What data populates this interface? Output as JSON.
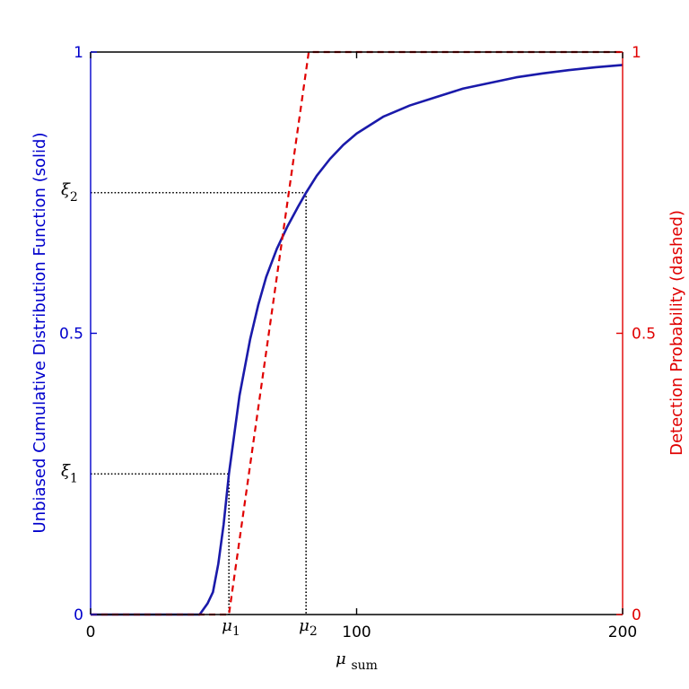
{
  "chart_data": {
    "type": "line",
    "x": [
      0,
      40,
      50,
      55,
      60,
      62,
      64,
      66,
      68,
      70,
      72,
      74,
      76,
      78,
      80,
      82,
      84,
      86,
      88,
      90,
      92,
      94,
      96,
      100,
      110,
      120,
      130,
      140,
      150,
      160,
      170,
      180,
      190,
      200
    ],
    "xlim": [
      0,
      200
    ],
    "xlabel": {
      "main": "μ",
      "sub": "sum"
    },
    "xticks": [
      "0",
      "100",
      "200"
    ],
    "xtick_values": [
      0,
      100,
      200
    ],
    "special_xticks": [
      {
        "main": "μ",
        "sub": "1",
        "value": 52
      },
      {
        "main": "μ",
        "sub": "2",
        "value": 81
      }
    ],
    "left_axis": {
      "ylabel": "Unbiased Cumulative Distribution Function (solid)",
      "ylim": [
        0,
        1
      ],
      "yticks": [
        "0",
        "0.5",
        "1"
      ],
      "ytick_values": [
        0,
        0.5,
        1
      ],
      "color": "#0000cc",
      "special_yticks": [
        {
          "main": "ξ",
          "sub": "1",
          "value": 0.25
        },
        {
          "main": "ξ",
          "sub": "2",
          "value": 0.75
        }
      ]
    },
    "right_axis": {
      "ylabel": "Detection Probability (dashed)",
      "ylim": [
        0,
        1
      ],
      "yticks": [
        "0",
        "0.5",
        "1"
      ],
      "ytick_values": [
        0,
        0.5,
        1
      ],
      "color": "#e00000"
    },
    "series": [
      {
        "style": "solid",
        "axis": "left",
        "color": "#1a1aaa",
        "x": [
          0,
          41,
          44,
          46,
          48,
          50,
          52,
          54,
          56,
          58,
          60,
          63,
          66,
          70,
          74,
          78,
          81,
          85,
          90,
          95,
          100,
          110,
          120,
          130,
          140,
          150,
          160,
          170,
          180,
          190,
          200
        ],
        "y": [
          0,
          0,
          0.02,
          0.04,
          0.09,
          0.16,
          0.25,
          0.32,
          0.39,
          0.44,
          0.49,
          0.55,
          0.6,
          0.65,
          0.69,
          0.725,
          0.75,
          0.78,
          0.81,
          0.835,
          0.855,
          0.885,
          0.905,
          0.92,
          0.935,
          0.945,
          0.955,
          0.962,
          0.968,
          0.973,
          0.977
        ]
      },
      {
        "style": "dashed",
        "axis": "right",
        "color": "#e00000",
        "x": [
          0,
          52,
          82,
          200
        ],
        "y": [
          0,
          0,
          1,
          1
        ]
      }
    ],
    "reference_lines": [
      {
        "from": [
          0,
          0.25
        ],
        "to": [
          52,
          0.25
        ]
      },
      {
        "from": [
          52,
          0.25
        ],
        "to": [
          52,
          0
        ]
      },
      {
        "from": [
          0,
          0.75
        ],
        "to": [
          81,
          0.75
        ]
      },
      {
        "from": [
          81,
          0.75
        ],
        "to": [
          81,
          0
        ]
      }
    ],
    "grid": false
  }
}
